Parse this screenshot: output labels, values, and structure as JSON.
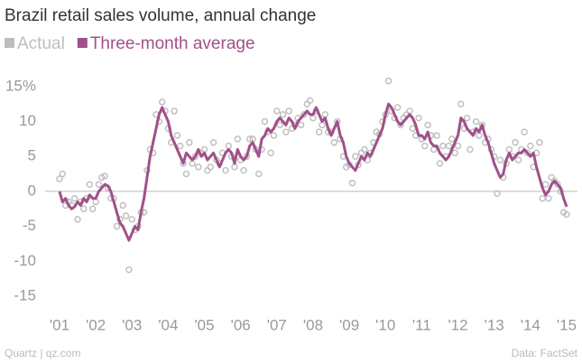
{
  "chart_data": {
    "type": "scatter_line",
    "title": "Brazil retail sales volume, annual change",
    "source_left": "Quartz | qz.com",
    "source_right": "Data: FactSet",
    "xlim": [
      2000.6,
      2015.3
    ],
    "ylim": [
      -17.2,
      16.4
    ],
    "xticks": [
      {
        "value": 2001,
        "label": "'01"
      },
      {
        "value": 2002,
        "label": "'02"
      },
      {
        "value": 2003,
        "label": "'03"
      },
      {
        "value": 2004,
        "label": "'04"
      },
      {
        "value": 2005,
        "label": "'05"
      },
      {
        "value": 2006,
        "label": "'06"
      },
      {
        "value": 2007,
        "label": "'07"
      },
      {
        "value": 2008,
        "label": "'08"
      },
      {
        "value": 2009,
        "label": "'09"
      },
      {
        "value": 2010,
        "label": "'10"
      },
      {
        "value": 2011,
        "label": "'11"
      },
      {
        "value": 2012,
        "label": "'12"
      },
      {
        "value": 2013,
        "label": "'13"
      },
      {
        "value": 2014,
        "label": "'14"
      },
      {
        "value": 2015,
        "label": "'15"
      }
    ],
    "yticks": [
      {
        "value": 15,
        "label": "15%"
      },
      10,
      5,
      0,
      -5,
      -10,
      -15
    ],
    "grid": false,
    "zero_line": true,
    "x": [
      2001,
      2001.083,
      2001.167,
      2001.25,
      2001.333,
      2001.417,
      2001.5,
      2001.583,
      2001.667,
      2001.75,
      2001.833,
      2001.917,
      2002,
      2002.083,
      2002.167,
      2002.25,
      2002.333,
      2002.417,
      2002.5,
      2002.583,
      2002.667,
      2002.75,
      2002.833,
      2002.917,
      2003,
      2003.083,
      2003.167,
      2003.25,
      2003.333,
      2003.417,
      2003.5,
      2003.583,
      2003.667,
      2003.75,
      2003.833,
      2003.917,
      2004,
      2004.083,
      2004.167,
      2004.25,
      2004.333,
      2004.417,
      2004.5,
      2004.583,
      2004.667,
      2004.75,
      2004.833,
      2004.917,
      2005,
      2005.083,
      2005.167,
      2005.25,
      2005.333,
      2005.417,
      2005.5,
      2005.583,
      2005.667,
      2005.75,
      2005.833,
      2005.917,
      2006,
      2006.083,
      2006.167,
      2006.25,
      2006.333,
      2006.417,
      2006.5,
      2006.583,
      2006.667,
      2006.75,
      2006.833,
      2006.917,
      2007,
      2007.083,
      2007.167,
      2007.25,
      2007.333,
      2007.417,
      2007.5,
      2007.583,
      2007.667,
      2007.75,
      2007.833,
      2007.917,
      2008,
      2008.083,
      2008.167,
      2008.25,
      2008.333,
      2008.417,
      2008.5,
      2008.583,
      2008.667,
      2008.75,
      2008.833,
      2008.917,
      2009,
      2009.083,
      2009.167,
      2009.25,
      2009.333,
      2009.417,
      2009.5,
      2009.583,
      2009.667,
      2009.75,
      2009.833,
      2009.917,
      2010,
      2010.083,
      2010.167,
      2010.25,
      2010.333,
      2010.417,
      2010.5,
      2010.583,
      2010.667,
      2010.75,
      2010.833,
      2010.917,
      2011,
      2011.083,
      2011.167,
      2011.25,
      2011.333,
      2011.417,
      2011.5,
      2011.583,
      2011.667,
      2011.75,
      2011.833,
      2011.917,
      2012,
      2012.083,
      2012.167,
      2012.25,
      2012.333,
      2012.417,
      2012.5,
      2012.583,
      2012.667,
      2012.75,
      2012.833,
      2012.917,
      2013,
      2013.083,
      2013.167,
      2013.25,
      2013.333,
      2013.417,
      2013.5,
      2013.583,
      2013.667,
      2013.75,
      2013.833,
      2013.917,
      2014,
      2014.083,
      2014.167,
      2014.25,
      2014.333,
      2014.417,
      2014.5,
      2014.583,
      2014.667,
      2014.75,
      2014.833,
      2014.917,
      2015
    ],
    "series": [
      {
        "name": "Actual",
        "color": "#bdbdbd",
        "kind": "points",
        "values": [
          1.8,
          2.5,
          -2,
          -1.5,
          -2,
          -1,
          -4,
          -1.5,
          -2.5,
          -1,
          1,
          -2.5,
          -1.5,
          1,
          2,
          2.2,
          0.5,
          -1,
          -1,
          -5,
          -4,
          -2,
          -3.5,
          -11.2,
          -4,
          -5.5,
          -5,
          -3,
          -3,
          3,
          6,
          5.5,
          11,
          10,
          12.8,
          11.5,
          9,
          7,
          11.5,
          8,
          6.5,
          4,
          2.5,
          7,
          4,
          5,
          3.5,
          5.5,
          6,
          3,
          3.5,
          7,
          4.5,
          4,
          5.5,
          3,
          6.5,
          5,
          3.5,
          7.5,
          4.5,
          3,
          5,
          7.5,
          7.5,
          6,
          2.5,
          6,
          10,
          8.5,
          5.5,
          8,
          11.5,
          9.5,
          11,
          8.5,
          11.5,
          9,
          9.5,
          10.5,
          9.5,
          11,
          12.5,
          13,
          10.5,
          11.5,
          8.5,
          9.5,
          11,
          8.5,
          8.5,
          7,
          10,
          7.5,
          5,
          3.5,
          3.8,
          1.2,
          5,
          3.8,
          5.5,
          6,
          4.5,
          5.5,
          7,
          8.5,
          8.2,
          10,
          11,
          15.8,
          11.5,
          10.5,
          12,
          9.5,
          10.5,
          11,
          11.5,
          9,
          8,
          10.5,
          7.5,
          6.5,
          9.5,
          8,
          6,
          8,
          4,
          6.5,
          5,
          6.5,
          7.5,
          5.5,
          6.5,
          12.5,
          9,
          10.5,
          6,
          8.5,
          10,
          8,
          9.5,
          7,
          7.5,
          6,
          5,
          -0.3,
          4.5,
          2,
          4,
          6,
          5,
          7,
          4.5,
          6,
          8.5,
          5.5,
          6.5,
          3.5,
          5.5,
          7,
          -1,
          1,
          -1,
          2,
          1.5,
          1,
          0,
          -3,
          -3.3
        ]
      },
      {
        "name": "Three-month average",
        "color": "#a1508a",
        "kind": "line",
        "values": [
          0,
          -1.5,
          -1,
          -2,
          -2.5,
          -2.2,
          -1.5,
          -2,
          -1,
          -1.5,
          -0.5,
          -1,
          -1,
          0,
          0.5,
          1,
          0.8,
          0,
          -1.5,
          -3,
          -4.5,
          -5,
          -6,
          -7,
          -6,
          -5,
          -5.5,
          -3,
          -1,
          2,
          5,
          7,
          9,
          11,
          12,
          11,
          10,
          8,
          7,
          6,
          5,
          4,
          5.5,
          5,
          4.5,
          5,
          6,
          5,
          5.5,
          4.5,
          5,
          5.5,
          4.5,
          3.5,
          4.5,
          5.5,
          6,
          5.5,
          4,
          6,
          5,
          4.5,
          5,
          6.5,
          7,
          6,
          5,
          7.5,
          8,
          9,
          8.5,
          9,
          10,
          10.5,
          10,
          9.5,
          10.5,
          10,
          9,
          10,
          10.5,
          11,
          11.5,
          11,
          11,
          12,
          11,
          10,
          10.5,
          9,
          8,
          9,
          10,
          8,
          7,
          5,
          4,
          3.5,
          3,
          4,
          5,
          4.5,
          5.5,
          5,
          6,
          7,
          8,
          9,
          11,
          12.5,
          12,
          11,
          10,
          9.5,
          10,
          10.5,
          11,
          10.5,
          9.5,
          8,
          8,
          7.5,
          8.5,
          7,
          6.5,
          6.5,
          5.5,
          5,
          4.5,
          5,
          6,
          7,
          8,
          10.5,
          10,
          9,
          8.5,
          8,
          9,
          8.5,
          9.5,
          8,
          7,
          5.5,
          4,
          3,
          2,
          2.5,
          4.5,
          5.5,
          4.5,
          5,
          5.5,
          5.5,
          6,
          5.5,
          5,
          5.5,
          3.5,
          2,
          0.5,
          -0.5,
          0,
          1,
          1.5,
          1,
          0.5,
          -1,
          -2.2
        ]
      }
    ]
  }
}
